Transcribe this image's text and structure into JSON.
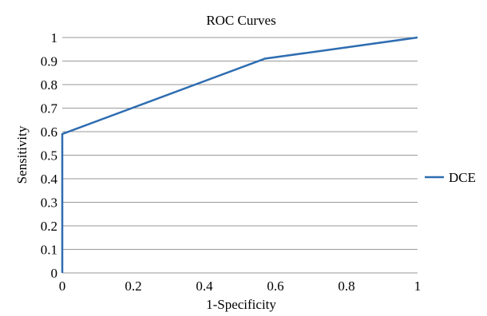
{
  "chart_data": {
    "type": "line",
    "title": "ROC Curves",
    "xlabel": "1-Specificity",
    "ylabel": "Sensitivity",
    "xlim": [
      0,
      1
    ],
    "ylim": [
      0,
      1
    ],
    "x_ticks": [
      "0",
      "0.2",
      "0.4",
      "0.6",
      "0.8",
      "1"
    ],
    "y_ticks": [
      "0",
      "0.1",
      "0.2",
      "0.3",
      "0.4",
      "0.5",
      "0.6",
      "0.7",
      "0.8",
      "0.9",
      "1"
    ],
    "grid": "horizontal",
    "legend_position": "right",
    "series": [
      {
        "name": "DCE",
        "color": "#2e6db1",
        "x": [
          0,
          0,
          0.57,
          1
        ],
        "y": [
          0,
          0.59,
          0.91,
          1
        ]
      }
    ]
  }
}
